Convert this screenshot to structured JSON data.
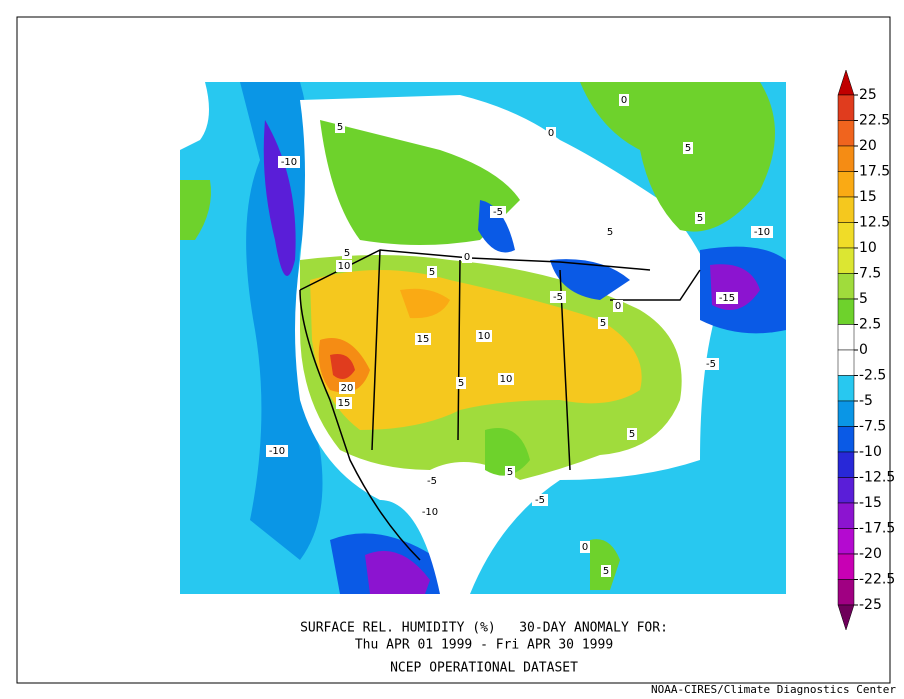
{
  "map": {
    "title": "SURFACE REL. HUMIDITY (%)   30-DAY ANOMALY FOR:",
    "subtitle": "Thu APR 01 1999 - Fri APR 30 1999",
    "dataset": "NCEP OPERATIONAL DATASET",
    "credit": "NOAA-CIRES/Climate Diagnostics Center",
    "labels": [
      "-10",
      "5",
      "0",
      "0",
      "-5",
      "5",
      "5",
      "5",
      "-10",
      "-15",
      "5",
      "10",
      "5",
      "0",
      "-5",
      "0",
      "5",
      "15",
      "10",
      "10",
      "5",
      "20",
      "15",
      "-5",
      "5",
      "-10",
      "5",
      "-5",
      "-5",
      "-10",
      "0",
      "5"
    ]
  },
  "colorbar": {
    "ticks": [
      25,
      22.5,
      20,
      17.5,
      15,
      12.5,
      10,
      7.5,
      5,
      2.5,
      0,
      -2.5,
      -5,
      -7.5,
      -10,
      -12.5,
      -15,
      -17.5,
      -20,
      -22.5,
      -25
    ],
    "colors": [
      "#c00000",
      "#e03c1e",
      "#f0641e",
      "#f58c14",
      "#faaa14",
      "#f5c81e",
      "#f0dc28",
      "#dce632",
      "#a0dc3c",
      "#6ed22c",
      "#ffffff",
      "#ffffff",
      "#28c8f0",
      "#0a96e6",
      "#0a5ae6",
      "#2828d8",
      "#5a1ed8",
      "#8c14d0",
      "#b40ad0",
      "#c800b4",
      "#a00082",
      "#6e005a"
    ]
  }
}
